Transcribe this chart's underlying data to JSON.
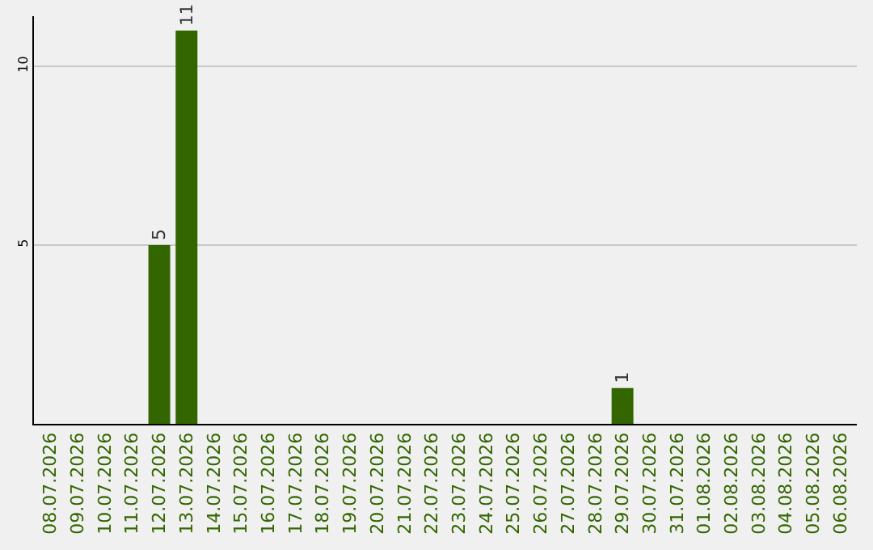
{
  "chart_data": {
    "type": "bar",
    "categories": [
      "08.07.2026",
      "09.07.2026",
      "10.07.2026",
      "11.07.2026",
      "12.07.2026",
      "13.07.2026",
      "14.07.2026",
      "15.07.2026",
      "16.07.2026",
      "17.07.2026",
      "18.07.2026",
      "19.07.2026",
      "20.07.2026",
      "21.07.2026",
      "22.07.2026",
      "23.07.2026",
      "24.07.2026",
      "25.07.2026",
      "26.07.2026",
      "27.07.2026",
      "28.07.2026",
      "29.07.2026",
      "30.07.2026",
      "31.07.2026",
      "01.08.2026",
      "02.08.2026",
      "03.08.2026",
      "04.08.2026",
      "05.08.2026",
      "06.08.2026"
    ],
    "values": [
      0,
      0,
      0,
      0,
      5,
      11,
      0,
      0,
      0,
      0,
      0,
      0,
      0,
      0,
      0,
      0,
      0,
      0,
      0,
      0,
      0,
      1,
      0,
      0,
      0,
      0,
      0,
      0,
      0,
      0
    ],
    "value_labels": [
      null,
      null,
      null,
      null,
      "5",
      "11",
      null,
      null,
      null,
      null,
      null,
      null,
      null,
      null,
      null,
      null,
      null,
      null,
      null,
      null,
      null,
      "1",
      null,
      null,
      null,
      null,
      null,
      null,
      null,
      null
    ],
    "color": "#336600",
    "ylim": [
      0,
      11.4
    ],
    "yticks": [
      5,
      10
    ],
    "grid": "y"
  }
}
